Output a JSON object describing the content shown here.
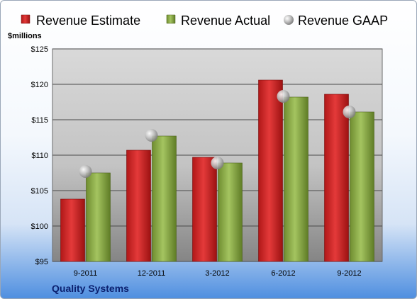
{
  "chart_data": {
    "type": "bar",
    "categories": [
      "9-2011",
      "12-2011",
      "3-2012",
      "6-2012",
      "9-2012"
    ],
    "series": [
      {
        "name": "Revenue Estimate",
        "values": [
          103.8,
          110.7,
          109.7,
          120.6,
          118.6
        ],
        "color": "#d42020"
      },
      {
        "name": "Revenue Actual",
        "values": [
          107.5,
          112.7,
          108.9,
          118.2,
          116.1
        ],
        "color": "#8fb04a"
      },
      {
        "name": "Revenue GAAP",
        "values": [
          107.7,
          112.8,
          108.9,
          118.3,
          116.1
        ],
        "color": "#b8b8b8",
        "marker": "sphere"
      }
    ],
    "ylim": [
      95,
      125
    ],
    "yticks": [
      95,
      100,
      105,
      110,
      115,
      120,
      125
    ],
    "ytick_labels": [
      "$95",
      "$100",
      "$105",
      "$110",
      "$115",
      "$120",
      "$125"
    ],
    "ylabel": "$millions",
    "xlabel": "",
    "title": "",
    "grid": true,
    "legend_position": "top"
  },
  "company": "Quality Systems"
}
